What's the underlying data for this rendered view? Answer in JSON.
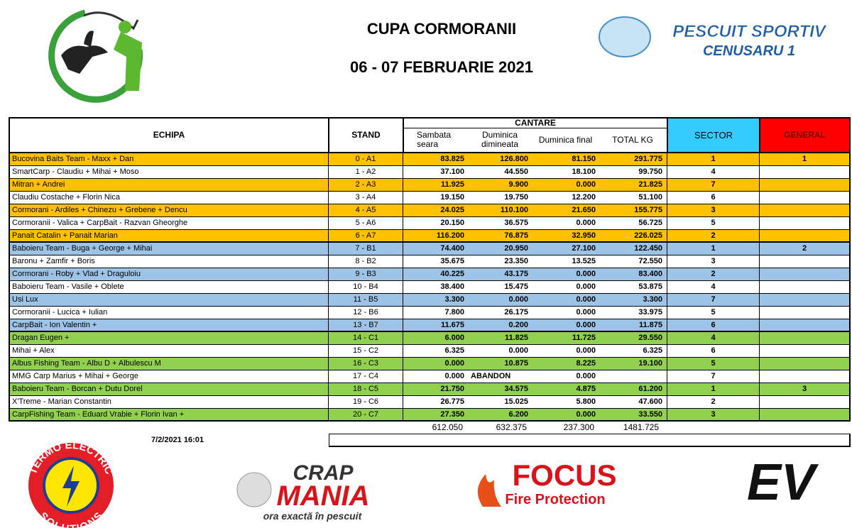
{
  "header": {
    "title": "CUPA CORMORANII",
    "date": "06 - 07 FEBRUARIE 2021",
    "logo_right": {
      "line1": "PESCUIT SPORTIV",
      "line2": "CENUSARU 1"
    }
  },
  "table": {
    "columns": {
      "team": "ECHIPA",
      "stand": "STAND",
      "group": "CANTARE",
      "day1": "Sambata seara",
      "day2": "Duminica dimineata",
      "day3": "Duminica final",
      "total": "TOTAL KG",
      "sector": "SECTOR",
      "general": "GENERAL"
    },
    "rows": [
      [
        "Bucovina Baits Team - Maxx + Dan",
        "0 - A1",
        "83.825",
        "126.800",
        "81.150",
        "291.775",
        "1",
        "1"
      ],
      [
        "SmartCarp - Claudiu + Mihai + Moso",
        "1 - A2",
        "37.100",
        "44.550",
        "18.100",
        "99.750",
        "4",
        null
      ],
      [
        "Mitran + Andrei",
        "2 - A3",
        "11.925",
        "9.900",
        "0.000",
        "21.825",
        "7",
        null
      ],
      [
        "Claudiu Costache + Florin Nica",
        "3 - A4",
        "19.150",
        "19.750",
        "12.200",
        "51.100",
        "6",
        null
      ],
      [
        "Cormorani - Ardiles + Chinezu + Grebene + Dencu",
        "4 - A5",
        "24.025",
        "110.100",
        "21.650",
        "155.775",
        "3",
        null
      ],
      [
        "Cormoranii - Valica + CarpBait - Razvan Gheorghe",
        "5 - A6",
        "20.150",
        "36.575",
        "0.000",
        "56.725",
        "5",
        null
      ],
      [
        "Panait Catalin + Panait Marian",
        "6 - A7",
        "116.200",
        "76.875",
        "32.950",
        "226.025",
        "2",
        null
      ],
      [
        "Baboieru Team - Buga + George + Mihai",
        "7 - B1",
        "74.400",
        "20.950",
        "27.100",
        "122.450",
        "1",
        "2"
      ],
      [
        "Baronu + Zamfir + Boris",
        "8 - B2",
        "35.675",
        "23.350",
        "13.525",
        "72.550",
        "3",
        null
      ],
      [
        "Cormorani - Roby + Vlad + Draguloiu",
        "9 - B3",
        "40.225",
        "43.175",
        "0.000",
        "83.400",
        "2",
        null
      ],
      [
        "Baboieru Team - Vasile + Oblete",
        "10 - B4",
        "38.400",
        "15.475",
        "0.000",
        "53.875",
        "4",
        null
      ],
      [
        "Usi Lux",
        "11 - B5",
        "3.300",
        "0.000",
        "0.000",
        "3.300",
        "7",
        null
      ],
      [
        "Cormoranii - Lucica + Iulian",
        "12 - B6",
        "7.800",
        "26.175",
        "0.000",
        "33.975",
        "5",
        null
      ],
      [
        "CarpBait - Ion Valentin +",
        "13 - B7",
        "11.675",
        "0.200",
        "0.000",
        "11.875",
        "6",
        null
      ],
      [
        "Dragan Eugen +",
        "14 - C1",
        "6.000",
        "11.825",
        "11.725",
        "29.550",
        "4",
        null
      ],
      [
        "Mihai + Alex",
        "15 - C2",
        "6.325",
        "0.000",
        "0.000",
        "6.325",
        "6",
        null
      ],
      [
        "Albus Fishing Team - Albu D + Albulescu M",
        "16 - C3",
        "0.000",
        "10.875",
        "8.225",
        "19.100",
        "5",
        null
      ],
      [
        "MMG Carp Marius + Mihai + George",
        "17 - C4",
        "0.000",
        "ABANDON",
        "0.000",
        null,
        "7",
        null
      ],
      [
        "Baboieru Team - Borcan + Dutu Dorel",
        "18 - C5",
        "21.750",
        "34.575",
        "4.875",
        "61.200",
        "1",
        "3"
      ],
      [
        "X'Treme - Marian Constantin",
        "19 - C6",
        "26.775",
        "15.025",
        "5.800",
        "47.600",
        "2",
        null
      ],
      [
        "CarpFishing Team - Eduard Vrabie + Florin Ivan +",
        "20 - C7",
        "27.350",
        "6.200",
        "0.000",
        "33.550",
        "3",
        null
      ]
    ],
    "totals": [
      "612.050",
      "632.375",
      "237.300",
      "1481.725"
    ]
  },
  "footer": {
    "timestamp": "7/2/2021 16:01",
    "sponsors": {
      "termo": {
        "top": "TERMO ELECTRIC",
        "bottom": "SOLUTIONS"
      },
      "crap": {
        "name1": "CRAP",
        "name2": "MANIA",
        "tagline": "ora exactă în pescuit"
      },
      "focus": {
        "name": "FOCUS",
        "tagline": "Fire Protection"
      },
      "ev": "EV"
    }
  }
}
